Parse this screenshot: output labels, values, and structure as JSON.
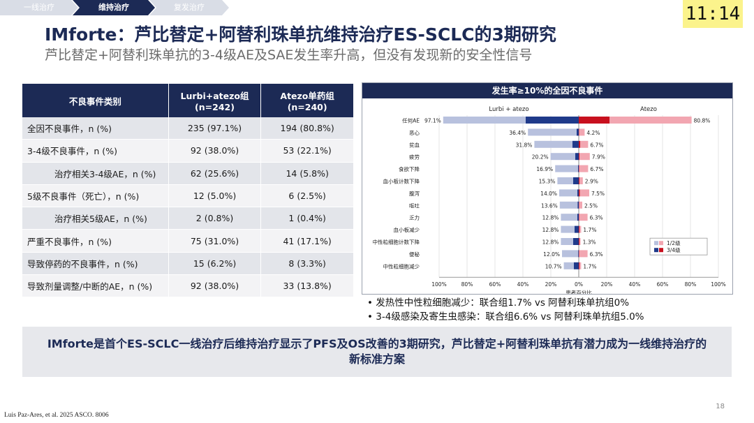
{
  "nav": {
    "tabs": [
      "一线治疗",
      "维持治疗",
      "复发治疗"
    ]
  },
  "clock": "11:14",
  "title": "IMforte：芦比替定+阿替利珠单抗维持治疗ES-SCLC的3期研究",
  "subtitle": "芦比替定+阿替利珠单抗的3-4级AE及SAE发生率升高，但没有发现新的安全性信号",
  "table": {
    "headers": [
      "不良事件类别",
      "Lurbi+atezo组\n(n=242)",
      "Atezo单药组\n(n=240)"
    ],
    "rows": [
      {
        "label": "全因不良事件，n (%)",
        "a": "235 (97.1%)",
        "b": "194 (80.8%)",
        "indent": false
      },
      {
        "label": "3-4级不良事件，n (%)",
        "a": "92 (38.0%)",
        "b": "53 (22.1%)",
        "indent": false
      },
      {
        "label": "治疗相关3-4级AE，n (%)",
        "a": "62 (25.6%)",
        "b": "14 (5.8%)",
        "indent": true
      },
      {
        "label": "5级不良事件（死亡），n (%)",
        "a": "12 (5.0%)",
        "b": "6 (2.5%)",
        "indent": false
      },
      {
        "label": "治疗相关5级AE，n (%)",
        "a": "2 (0.8%)",
        "b": "1 (0.4%)",
        "indent": true
      },
      {
        "label": "严重不良事件，n (%)",
        "a": "75 (31.0%)",
        "b": "41 (17.1%)",
        "indent": false
      },
      {
        "label": "导致停药的不良事件，n (%)",
        "a": "15 (6.2%)",
        "b": "8 (3.3%)",
        "indent": false
      },
      {
        "label": "导致剂量调整/中断的AE，n (%)",
        "a": "92 (38.0%)",
        "b": "33 (13.8%)",
        "indent": false
      }
    ]
  },
  "chart_data": {
    "type": "bar",
    "orientation": "horizontal-butterfly",
    "title": "发生率≥10%的全因不良事件",
    "left_group": "Lurbi + atezo",
    "right_group": "Atezo",
    "xlabel": "患者百分比",
    "xlim": [
      -100,
      100
    ],
    "xticks": [
      "100%",
      "80%",
      "60%",
      "40%",
      "20%",
      "0%",
      "20%",
      "40%",
      "60%",
      "80%",
      "100%"
    ],
    "legend": [
      "1/2级",
      "3/4级"
    ],
    "legend_position": "bottom-right",
    "categories": [
      "任何AE",
      "恶心",
      "贫血",
      "疲劳",
      "食欲下降",
      "血小板计数下降",
      "腹泻",
      "呕吐",
      "乏力",
      "血小板减少",
      "中性粒细胞计数下降",
      "便秘",
      "中性粒细胞减少"
    ],
    "lurbi_total": [
      97.1,
      36.4,
      31.8,
      20.2,
      16.9,
      15.3,
      14.0,
      13.6,
      12.8,
      12.8,
      12.8,
      12.0,
      10.7
    ],
    "lurbi_total_labels": [
      "97.1%",
      "36.4%",
      "31.8%",
      "20.2%",
      "16.9%",
      "15.3%",
      "14.0%",
      "13.6%",
      "12.8%",
      "12.8%",
      "12.8%",
      "12.0%",
      "10.7%"
    ],
    "lurbi_grade34": [
      38.0,
      1.5,
      4.5,
      2.5,
      0.5,
      4.0,
      1.0,
      0.8,
      1.0,
      3.0,
      4.0,
      0.4,
      3.5
    ],
    "atezo_total": [
      80.8,
      4.2,
      6.7,
      7.9,
      6.7,
      2.9,
      7.5,
      2.5,
      6.3,
      1.7,
      1.3,
      6.3,
      1.7
    ],
    "atezo_total_labels": [
      "80.8%",
      "4.2%",
      "6.7%",
      "7.9%",
      "6.7%",
      "2.9%",
      "7.5%",
      "2.5%",
      "6.3%",
      "1.7%",
      "1.3%",
      "6.3%",
      "1.7%"
    ],
    "atezo_grade34": [
      22.1,
      0.3,
      1.0,
      0.5,
      0.3,
      0.5,
      0.8,
      0.2,
      0.3,
      0.5,
      0.5,
      0.3,
      0.5
    ],
    "colors": {
      "lurbi_low": "#b8c1de",
      "lurbi_high": "#1f3a8a",
      "atezo_low": "#f2a6b1",
      "atezo_high": "#c8101e"
    }
  },
  "bullets": [
    "发热性中性粒细胞减少：联合组1.7% vs 阿替利珠单抗组0%",
    "3-4级感染及寄生虫感染：联合组6.6% vs 阿替利珠单抗组5.0%"
  ],
  "banner": "IMforte是首个ES-SCLC一线治疗后维持治疗显示了PFS及OS改善的3期研究，芦比替定+阿替利珠单抗有潜力成为一线维持治疗的新标准方案",
  "citation": "Luis Paz-Ares, et al. 2025 ASCO. 8006",
  "page_number": "18"
}
